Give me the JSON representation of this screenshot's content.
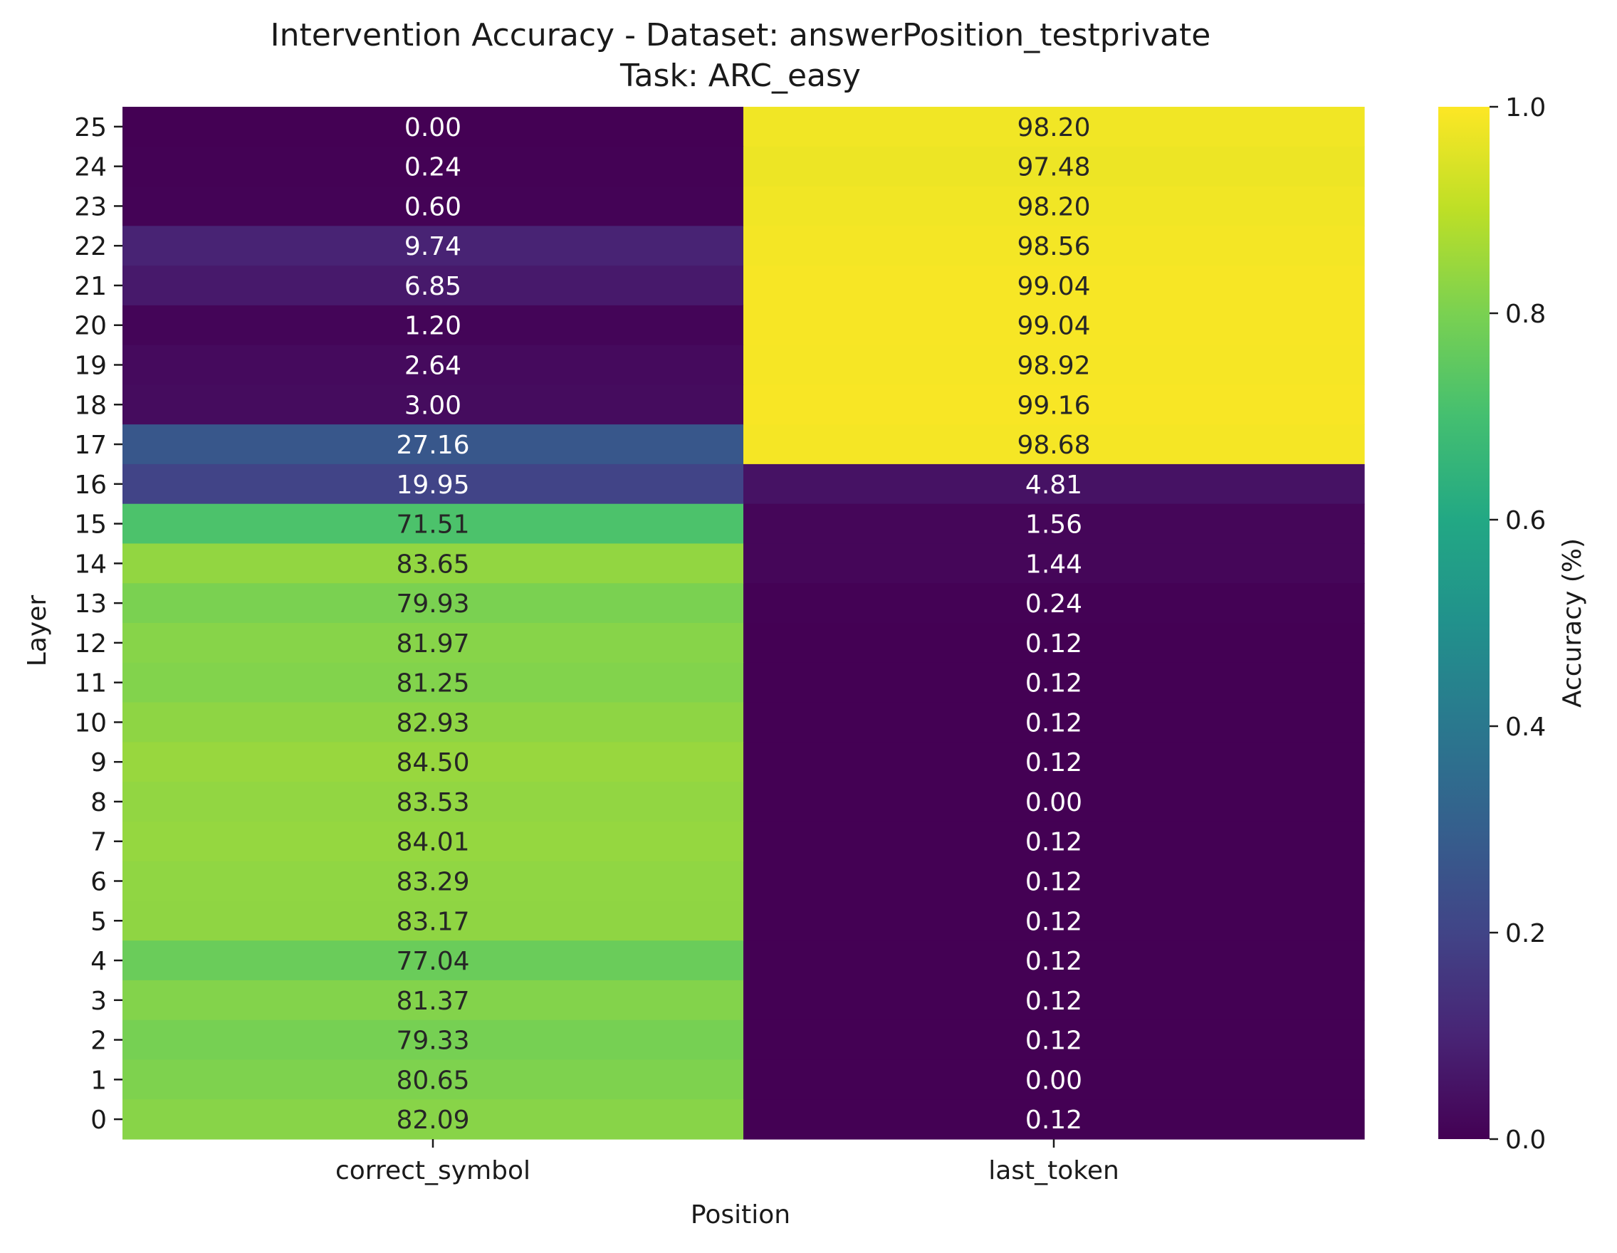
{
  "chart_data": {
    "type": "heatmap",
    "title": "Intervention Accuracy - Dataset: answerPosition_testprivate",
    "subtitle": "Task: ARC_easy",
    "xlabel": "Position",
    "ylabel": "Layer",
    "colorbar_label": "Accuracy (%)",
    "colormap": "viridis",
    "color_range": [
      0,
      1
    ],
    "colorbar_ticks": [
      "0.0",
      "0.2",
      "0.4",
      "0.6",
      "0.8",
      "1.0"
    ],
    "columns": [
      "correct_symbol",
      "last_token"
    ],
    "rows": [
      "25",
      "24",
      "23",
      "22",
      "21",
      "20",
      "19",
      "18",
      "17",
      "16",
      "15",
      "14",
      "13",
      "12",
      "11",
      "10",
      "9",
      "8",
      "7",
      "6",
      "5",
      "4",
      "3",
      "2",
      "1",
      "0"
    ],
    "values": [
      [
        0.0,
        98.2
      ],
      [
        0.24,
        97.48
      ],
      [
        0.6,
        98.2
      ],
      [
        9.74,
        98.56
      ],
      [
        6.85,
        99.04
      ],
      [
        1.2,
        99.04
      ],
      [
        2.64,
        98.92
      ],
      [
        3.0,
        99.16
      ],
      [
        27.16,
        98.68
      ],
      [
        19.95,
        4.81
      ],
      [
        71.51,
        1.56
      ],
      [
        83.65,
        1.44
      ],
      [
        79.93,
        0.24
      ],
      [
        81.97,
        0.12
      ],
      [
        81.25,
        0.12
      ],
      [
        82.93,
        0.12
      ],
      [
        84.5,
        0.12
      ],
      [
        83.53,
        0.0
      ],
      [
        84.01,
        0.12
      ],
      [
        83.29,
        0.12
      ],
      [
        83.17,
        0.12
      ],
      [
        77.04,
        0.12
      ],
      [
        81.37,
        0.12
      ],
      [
        79.33,
        0.12
      ],
      [
        80.65,
        0.0
      ],
      [
        82.09,
        0.12
      ]
    ],
    "annotations": [
      [
        "0.00",
        "98.20"
      ],
      [
        "0.24",
        "97.48"
      ],
      [
        "0.60",
        "98.20"
      ],
      [
        "9.74",
        "98.56"
      ],
      [
        "6.85",
        "99.04"
      ],
      [
        "1.20",
        "99.04"
      ],
      [
        "2.64",
        "98.92"
      ],
      [
        "3.00",
        "99.16"
      ],
      [
        "27.16",
        "98.68"
      ],
      [
        "19.95",
        "4.81"
      ],
      [
        "71.51",
        "1.56"
      ],
      [
        "83.65",
        "1.44"
      ],
      [
        "79.93",
        "0.24"
      ],
      [
        "81.97",
        "0.12"
      ],
      [
        "81.25",
        "0.12"
      ],
      [
        "82.93",
        "0.12"
      ],
      [
        "84.50",
        "0.12"
      ],
      [
        "83.53",
        "0.00"
      ],
      [
        "84.01",
        "0.12"
      ],
      [
        "83.29",
        "0.12"
      ],
      [
        "83.17",
        "0.12"
      ],
      [
        "77.04",
        "0.12"
      ],
      [
        "81.37",
        "0.12"
      ],
      [
        "79.33",
        "0.12"
      ],
      [
        "80.65",
        "0.00"
      ],
      [
        "82.09",
        "0.12"
      ]
    ]
  }
}
